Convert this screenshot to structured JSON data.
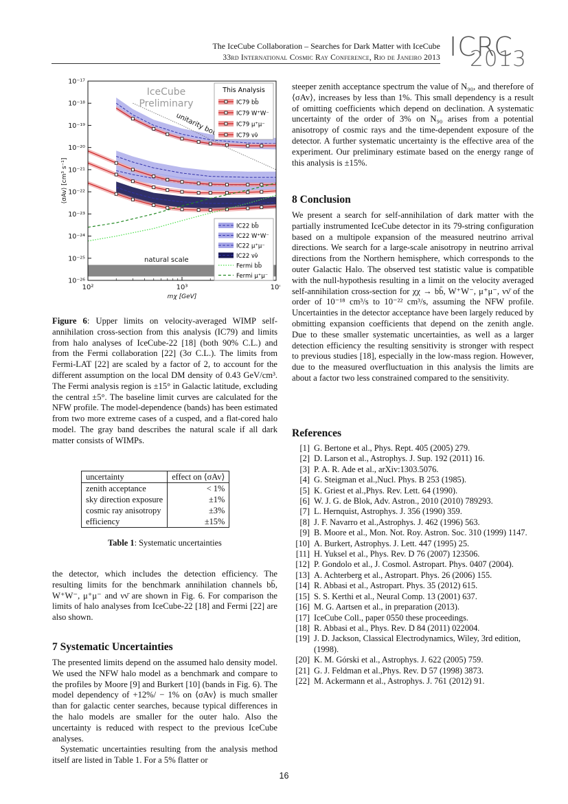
{
  "header": {
    "title": "The IceCube Collaboration – Searches for Dark Matter with IceCube",
    "conference": "33rd International Cosmic Ray Conference, Rio de Janeiro 2013",
    "logo_top": "ICRC",
    "logo_bottom": "2013"
  },
  "chart_data": {
    "type": "line",
    "xlabel": "mχ [GeV]",
    "ylabel": "⟨σAv⟩ [cm³ s⁻¹]",
    "xscale": "log",
    "yscale": "log",
    "xlim": [
      100,
      10000
    ],
    "ylim": [
      1e-26,
      1e-17
    ],
    "x_ticks": [
      "10²",
      "10³",
      "10⁴"
    ],
    "y_ticks": [
      "10⁻¹⁷",
      "10⁻¹⁸",
      "10⁻¹⁹",
      "10⁻²⁰",
      "10⁻²¹",
      "10⁻²²",
      "10⁻²³",
      "10⁻²⁴",
      "10⁻²⁵",
      "10⁻²⁶"
    ],
    "watermark": [
      "IceCube",
      "Preliminary"
    ],
    "annotations": [
      "unitarity bound",
      "natural scale"
    ],
    "legend_top_title": "This Analysis",
    "legend_top": [
      "IC79 bb̄",
      "IC79 W⁺W⁻",
      "IC79 μ⁺μ⁻",
      "IC79 νν̄"
    ],
    "legend_bottom": [
      "IC22 bb̄",
      "IC22 W⁺W⁻",
      "IC22 μ⁺μ⁻",
      "IC22 νν̄",
      "Fermi bb̄",
      "Fermi μ⁺μ⁻"
    ],
    "colors": {
      "ic79": "#cc2222",
      "ic79_band": "#f0a0a0",
      "ic22_band": "#a8a8e8",
      "ic22_line": "#3333aa",
      "ic22_dark": "#1a1a55",
      "fermi_bb": "#44dd44",
      "fermi_mm": "#228822",
      "natural": "#888888",
      "unitarity": "#777777"
    },
    "series": [
      {
        "name": "IC79 bb̄",
        "x": [
          200,
          300,
          500,
          700,
          1000,
          1500,
          2000,
          3000,
          5000,
          7000,
          10000
        ],
        "y": [
          6e-19,
          2e-19,
          7e-20,
          4e-20,
          2.5e-20,
          1.8e-20,
          1.5e-20,
          1.3e-20,
          1.2e-20,
          1.2e-20,
          1.2e-20
        ]
      },
      {
        "name": "IC79 W⁺W⁻",
        "x": [
          100,
          200,
          300,
          500,
          700,
          1000,
          1500,
          2000,
          3000,
          5000,
          7000,
          10000
        ],
        "y": [
          7e-21,
          2e-21,
          1e-21,
          5e-22,
          3.5e-22,
          2.8e-22,
          2.4e-22,
          2.2e-22,
          2.1e-22,
          2.1e-22,
          2.1e-22,
          2.1e-22
        ]
      },
      {
        "name": "IC79 μ⁺μ⁻",
        "x": [
          100,
          200,
          300,
          500,
          700,
          1000,
          1500,
          2000,
          3000,
          5000,
          7000,
          10000
        ],
        "y": [
          2e-21,
          6e-22,
          3e-22,
          1.6e-22,
          1.2e-22,
          1e-22,
          9e-23,
          9e-23,
          9e-23,
          9.5e-23,
          1e-22,
          1.1e-22
        ]
      },
      {
        "name": "IC79 νν̄",
        "x": [
          100,
          200,
          300,
          500,
          700,
          1000,
          1500,
          2000,
          3000,
          5000,
          7000,
          10000
        ],
        "y": [
          2.5e-22,
          8e-23,
          4.5e-23,
          2.5e-23,
          1.9e-23,
          1.6e-23,
          1.5e-23,
          1.5e-23,
          1.6e-23,
          1.8e-23,
          2e-23,
          2.2e-23
        ]
      },
      {
        "name": "IC22 bb̄",
        "x": [
          200,
          300,
          500,
          1000,
          2000,
          5000,
          10000
        ],
        "y": [
          1e-18,
          3e-19,
          1e-19,
          4e-20,
          2.2e-20,
          1.6e-20,
          1.5e-20
        ]
      },
      {
        "name": "IC22 W⁺W⁻",
        "x": [
          200,
          300,
          500,
          1000,
          2000,
          5000,
          10000
        ],
        "y": [
          4e-21,
          2.2e-21,
          1.2e-21,
          7e-22,
          5e-22,
          4.5e-22,
          4.5e-22
        ]
      },
      {
        "name": "IC22 μ⁺μ⁻",
        "x": [
          200,
          300,
          500,
          1000,
          2000,
          5000,
          10000
        ],
        "y": [
          9e-22,
          6e-22,
          4e-22,
          2.5e-22,
          2e-22,
          2e-22,
          2.2e-22
        ]
      },
      {
        "name": "IC22 νν̄",
        "x": [
          200,
          300,
          500,
          1000,
          2000,
          5000,
          10000
        ],
        "y": [
          1.6e-22,
          9e-23,
          5e-23,
          3.5e-23,
          3e-23,
          3e-23,
          3.3e-23
        ]
      },
      {
        "name": "Fermi bb̄",
        "x": [
          100,
          200,
          500,
          1000,
          2000,
          5000,
          10000
        ],
        "y": [
          6e-25,
          1e-24,
          2.2e-24,
          5e-24,
          1.1e-23,
          3e-23,
          7e-23
        ]
      },
      {
        "name": "Fermi μ⁺μ⁻",
        "x": [
          100,
          200,
          500,
          1000,
          2000,
          5000,
          10000
        ],
        "y": [
          2.5e-24,
          4e-24,
          1e-23,
          2.3e-23,
          5e-23,
          1.2e-22,
          2.5e-22
        ]
      },
      {
        "name": "unitarity bound",
        "x": [
          300,
          1000,
          3000,
          10000
        ],
        "y": [
          1e-18,
          1e-19,
          1e-20,
          1e-21
        ]
      },
      {
        "name": "natural scale",
        "x": [
          100,
          10000
        ],
        "y": [
          3e-26,
          3e-26
        ]
      }
    ]
  },
  "figure_caption": {
    "label": "Figure 6",
    "text": ": Upper limits on velocity-averaged WIMP self-annihilation cross-section from this analysis (IC79) and limits from halo analyses of IceCube-22 [18] (both 90% C.L.) and from the Fermi collaboration [22] (3σ C.L.). The limits from Fermi-LAT [22] are scaled by a factor of 2, to account for the different assumption on the local DM density of 0.43 GeV/cm³. The Fermi analysis region is ±15° in Galactic latitude, excluding the central ±5°. The baseline limit curves are calculated for the NFW profile. The model-dependence (bands) has been estimated from two more extreme cases of a cusped, and a flat-cored halo model. The gray band describes the natural scale if all dark matter consists of WIMPs."
  },
  "table": {
    "headers": [
      "uncertainty",
      "effect on ⟨σAv⟩"
    ],
    "rows": [
      [
        "zenith acceptance",
        "< 1%"
      ],
      [
        "sky direction exposure",
        "±1%"
      ],
      [
        "cosmic ray anisotropy",
        "±3%"
      ],
      [
        "efficiency",
        "±15%"
      ]
    ],
    "caption_label": "Table 1",
    "caption_text": ": Systematic uncertainties"
  },
  "left_body": {
    "para1": "the detector, which includes the detection efficiency. The resulting limits for the benchmark annihilation channels bb̄, W⁺W⁻, μ⁺μ⁻ and νν̄ are shown in Fig. 6. For comparison the limits of halo analyses from IceCube-22 [18] and Fermi [22] are also shown.",
    "section7": "7   Systematic Uncertainties",
    "para2": "The presented limits depend on the assumed halo density model. We used the NFW halo model as a benchmark and compare to the profiles by Moore [9] and Burkert [10] (bands in Fig. 6). The model dependency of +12%/ − 1% on ⟨σAv⟩ is much smaller than for galactic center searches, because typical differences in the halo models are smaller for the outer halo. Also the uncertainty is reduced with respect to the previous IceCube analyses.",
    "para3": "Systematic uncertainties resulting from the analysis method itself are listed in Table 1. For a 5% flatter or"
  },
  "right_body": {
    "para1": "steeper zenith acceptance spectrum the value of N₉₀, and therefore of ⟨σAv⟩, increases by less than 1%. This small dependency is a result of omitting coefficients which depend on declination. A systematic uncertainty of the order of 3% on N₉₀ arises from a potential anisotropy of cosmic rays and the time-dependent exposure of the detector. A further systematic uncertainty is the effective area of the experiment. Our preliminary estimate based on the energy range of this analysis is ±15%.",
    "section8": "8   Conclusion",
    "para2": "We present a search for self-annihilation of dark matter with the partially instrumented IceCube detector in its 79-string configuration based on a multipole expansion of the measured neutrino arrival directions. We search for a large-scale anisotropy in neutrino arrival directions from the Northern hemisphere, which corresponds to the outer Galactic Halo. The observed test statistic value is compatible with the null-hypothesis resulting in a limit on the velocity averaged self-annihilation cross-section for χχ → bb̄, W⁺W⁻, μ⁺μ⁻, νν̄ of the order of 10⁻¹⁸ cm³/s to 10⁻²² cm³/s, assuming the NFW profile. Uncertainties in the detector acceptance have been largely reduced by obmitting expansion coefficients that depend on the zenith angle. Due to these smaller systematic uncertainties, as well as a larger detection efficiency the resulting sensitivity is stronger with respect to previous studies [18], especially in the low-mass region. However, due to the measured overfluctuation in this analysis the limits are about a factor two less constrained compared to the sensitivity.",
    "references_heading": "References"
  },
  "references": [
    [
      "[1]",
      "G. Bertone et al., Phys. Rept. 405 (2005) 279."
    ],
    [
      "[2]",
      "D. Larson et al., Astrophys. J. Sup. 192 (2011) 16."
    ],
    [
      "[3]",
      "P. A. R. Ade et al., arXiv:1303.5076."
    ],
    [
      "[4]",
      "G. Steigman et al.,Nucl. Phys. B 253 (1985)."
    ],
    [
      "[5]",
      "K. Griest et al.,Phys. Rev. Lett. 64 (1990)."
    ],
    [
      "[6]",
      "W. J. G. de Blok, Adv. Astron., 2010 (2010) 789293."
    ],
    [
      "[7]",
      "L. Hernquist, Astrophys. J. 356 (1990) 359."
    ],
    [
      "[8]",
      "J. F. Navarro et al.,Astrophys. J. 462 (1996) 563."
    ],
    [
      "[9]",
      "B. Moore et al., Mon. Not. Roy. Astron. Soc. 310 (1999) 1147."
    ],
    [
      "[10]",
      "A. Burkert, Astrophys. J. Lett. 447 (1995) 25."
    ],
    [
      "[11]",
      "H. Yuksel et al., Phys. Rev. D 76 (2007) 123506."
    ],
    [
      "[12]",
      "P. Gondolo et al., J. Cosmol. Astropart. Phys. 0407 (2004)."
    ],
    [
      "[13]",
      "A. Achterberg et al., Astropart. Phys. 26 (2006) 155."
    ],
    [
      "[14]",
      "R. Abbasi et al., Astropart. Phys. 35 (2012) 615."
    ],
    [
      "[15]",
      "S. S. Kerthi et al., Neural Comp. 13 (2001) 637."
    ],
    [
      "[16]",
      "M. G. Aartsen et al., in preparation (2013)."
    ],
    [
      "[17]",
      "IceCube Coll., paper 0550 these proceedings."
    ],
    [
      "[18]",
      "R. Abbasi et al., Phys. Rev. D 84 (2011) 022004."
    ],
    [
      "[19]",
      "J. D. Jackson, Classical Electrodynamics, Wiley, 3rd edition, (1998)."
    ],
    [
      "[20]",
      "K. M. Górski et al., Astrophys. J. 622 (2005) 759."
    ],
    [
      "[21]",
      "G. J. Feldman et al.,Phys. Rev. D 57 (1998) 3873."
    ],
    [
      "[22]",
      "M. Ackermann et al., Astrophys. J. 761 (2012) 91."
    ]
  ],
  "page_number": "16"
}
